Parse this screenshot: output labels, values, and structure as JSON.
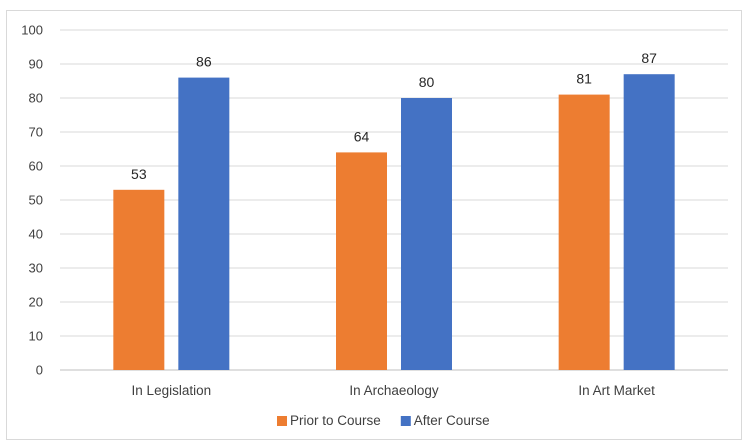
{
  "chart_data": {
    "type": "bar",
    "categories": [
      "In Legislation",
      "In Archaeology",
      "In Art Market"
    ],
    "series": [
      {
        "name": "Prior to Course",
        "values": [
          53,
          64,
          81
        ],
        "color": "#ED7D31"
      },
      {
        "name": "After Course",
        "values": [
          86,
          80,
          87
        ],
        "color": "#4472C4"
      }
    ],
    "ylim": [
      0,
      100
    ],
    "yticks": [
      0,
      10,
      20,
      30,
      40,
      50,
      60,
      70,
      80,
      90,
      100
    ],
    "grid": true,
    "legend_position": "bottom",
    "data_labels": true
  },
  "colors": {
    "grid": "#d9d9d9",
    "axis": "#bfbfbf",
    "text": "#404040"
  }
}
